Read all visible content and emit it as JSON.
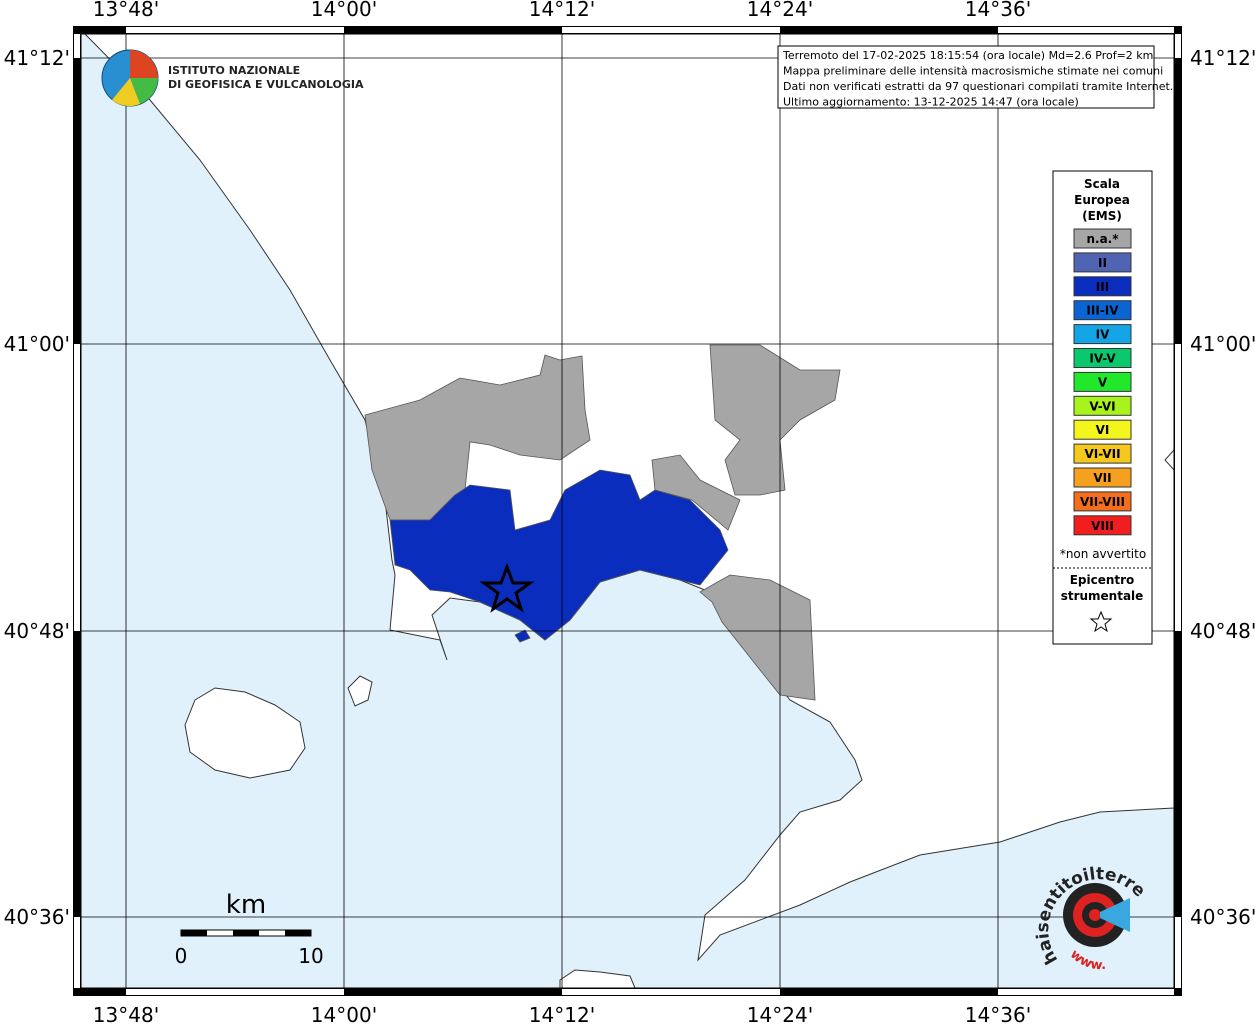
{
  "logo": {
    "lines": [
      "ISTITUTO NAZIONALE",
      "DI GEOFISICA E VULCANOLOGIA"
    ]
  },
  "frame": {
    "top_labels": [
      "13°48'",
      "14°00'",
      "14°12'",
      "14°24'",
      "14°36'"
    ],
    "bottom_labels": [
      "13°48'",
      "14°00'",
      "14°12'",
      "14°24'",
      "14°36'"
    ],
    "left_labels": [
      "41°12'",
      "41°00'",
      "40°48'",
      "40°36'"
    ],
    "right_labels": [
      "41°12'",
      "41°00'",
      "40°48'",
      "40°36'"
    ]
  },
  "info_box": {
    "lines": [
      "Terremoto del 17-02-2025 18:15:54 (ora locale) Md=2.6 Prof=2 km",
      "Mappa preliminare delle intensità macrosismiche stimate nei comuni",
      "Dati non verificati estratti da 97 questionari compilati tramite Internet.",
      "Ultimo aggiornamento: 13-12-2025 14:47 (ora locale)"
    ]
  },
  "legend": {
    "title_lines": [
      "Scala",
      "Europea",
      "(EMS)"
    ],
    "items": [
      {
        "label": "n.a.*",
        "color": "#a6a6a6"
      },
      {
        "label": "II",
        "color": "#5064b4"
      },
      {
        "label": "III",
        "color": "#0b2dbd"
      },
      {
        "label": "III-IV",
        "color": "#0a64d2"
      },
      {
        "label": "IV",
        "color": "#13a5e6"
      },
      {
        "label": "IV-V",
        "color": "#0bc86e"
      },
      {
        "label": "V",
        "color": "#22e82c"
      },
      {
        "label": "V-VI",
        "color": "#a8f21e"
      },
      {
        "label": "VI",
        "color": "#f5f51e"
      },
      {
        "label": "VI-VII",
        "color": "#f5c81e"
      },
      {
        "label": "VII",
        "color": "#f5a01e"
      },
      {
        "label": "VII-VIII",
        "color": "#f56e1e"
      },
      {
        "label": "VIII",
        "color": "#f01e1e"
      }
    ],
    "note": "*non avvertito",
    "epicenter_lines": [
      "Epicentro",
      "strumentale"
    ]
  },
  "scale_bar": {
    "unit": "km",
    "labels": [
      "0",
      "10"
    ]
  },
  "watermark": {
    "main": "haisentitoilterremoto.it",
    "prefix": "www."
  }
}
